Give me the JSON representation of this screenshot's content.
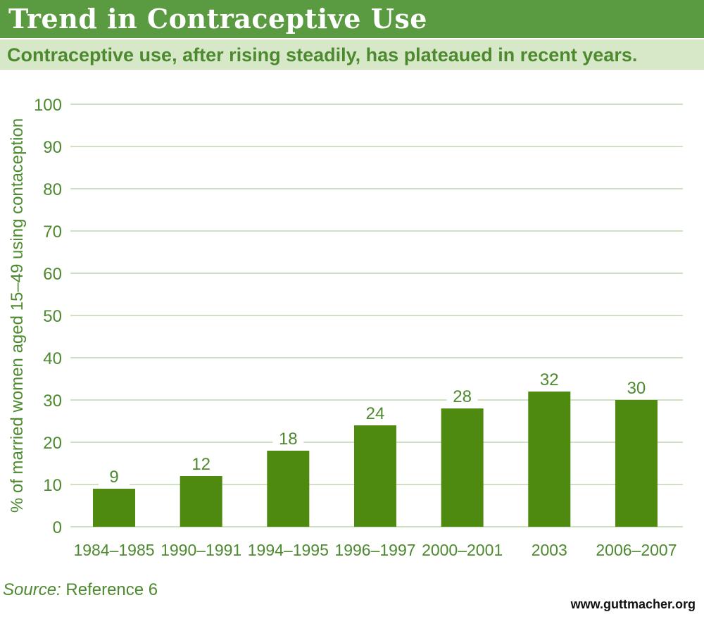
{
  "header": {
    "title": "Trend in Contraceptive Use",
    "subtitle": "Contraceptive use, after rising steadily, has plateaued in recent years."
  },
  "footer": {
    "source_label": "Source:",
    "source_text": "Reference 6",
    "website": "www.guttmacher.org"
  },
  "colors": {
    "title_bar": "#5a9a41",
    "subtitle_bar": "#d7e8c9",
    "text_green": "#4d8a2f",
    "bar": "#4e8a10",
    "grid": "#9cc483"
  },
  "chart_data": {
    "type": "bar",
    "categories": [
      "1984–1985",
      "1990–1991",
      "1994–1995",
      "1996–1997",
      "2000–2001",
      "2003",
      "2006–2007"
    ],
    "values": [
      9,
      12,
      18,
      24,
      28,
      32,
      30
    ],
    "ylabel": "% of married women aged 15–49 using contaception",
    "xlabel": "",
    "ylim": [
      0,
      100
    ],
    "yticks": [
      0,
      10,
      20,
      30,
      40,
      50,
      60,
      70,
      80,
      90,
      100
    ],
    "grid": true,
    "data_labels": true
  }
}
